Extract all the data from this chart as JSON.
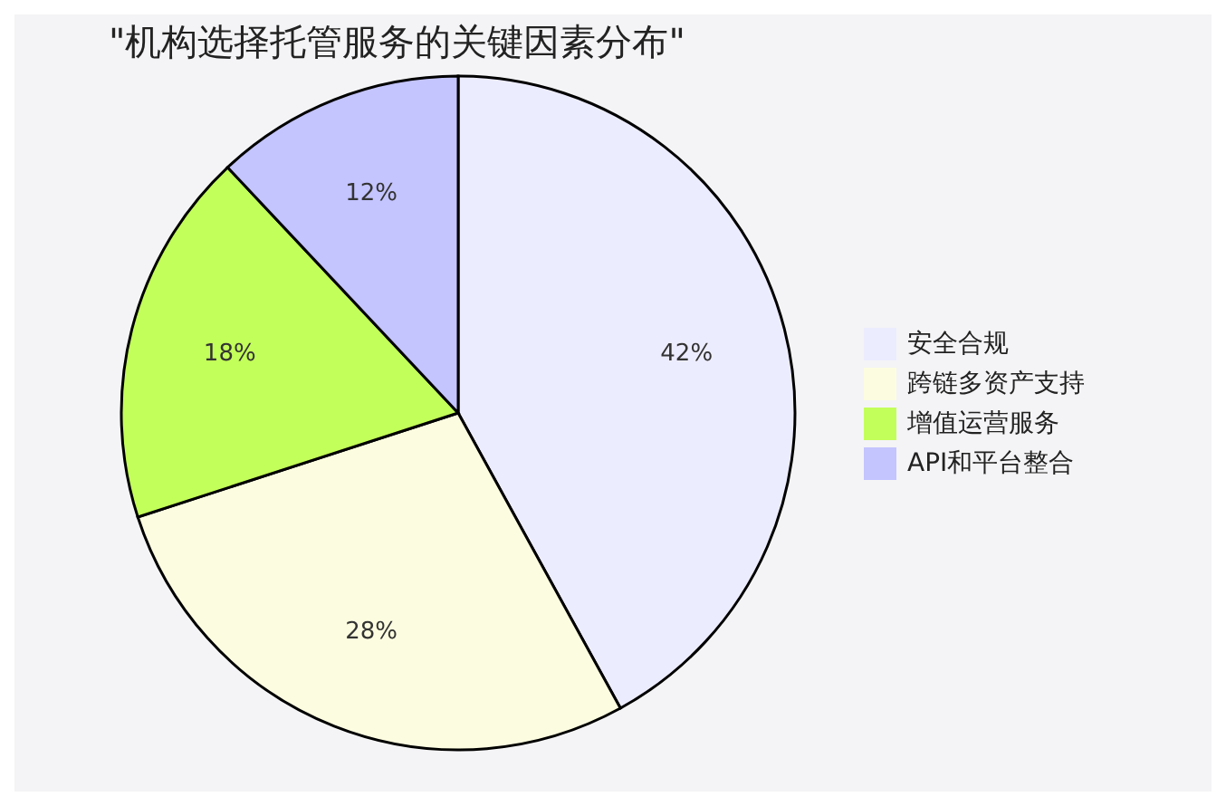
{
  "chart_data": {
    "type": "pie",
    "title": "\"机构选择托管服务的关键因素分布\"",
    "categories": [
      "安全合规",
      "跨链多资产支持",
      "增值运营服务",
      "API和平台整合"
    ],
    "values": [
      42,
      28,
      18,
      12
    ],
    "colors": [
      "#ececff",
      "#fcfce0",
      "#c3ff5a",
      "#c4c4ff"
    ],
    "value_labels": [
      "42%",
      "28%",
      "18%",
      "12%"
    ],
    "legend": "right"
  }
}
